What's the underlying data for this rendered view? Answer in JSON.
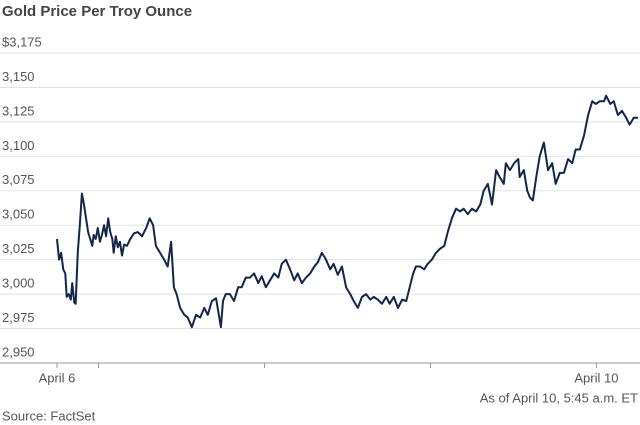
{
  "chart_data": {
    "type": "line",
    "title": "Gold Price Per Troy Ounce",
    "note": "As of April 10, 5:45 a.m. ET",
    "source": "Source: FactSet",
    "color": "#14254a",
    "grid": true,
    "xlim": [
      0,
      84.3
    ],
    "xticks": [
      {
        "value": 0,
        "label": "April 6"
      },
      {
        "value": 6,
        "label": null
      },
      {
        "value": 30,
        "label": null
      },
      {
        "value": 54,
        "label": null
      },
      {
        "value": 78,
        "label": "April 10"
      }
    ],
    "ylim": [
      2950,
      3175
    ],
    "yticks": [
      {
        "value": 2950,
        "label": "2,950"
      },
      {
        "value": 2975,
        "label": "2,975"
      },
      {
        "value": 3000,
        "label": "3,000"
      },
      {
        "value": 3025,
        "label": "3,025"
      },
      {
        "value": 3050,
        "label": "3,050"
      },
      {
        "value": 3075,
        "label": "3,075"
      },
      {
        "value": 3100,
        "label": "3,100"
      },
      {
        "value": 3125,
        "label": "3,125"
      },
      {
        "value": 3150,
        "label": "3,150"
      },
      {
        "value": 3175,
        "label": "$3,175"
      }
    ],
    "x": [
      0,
      0.3,
      0.6,
      0.9,
      1.2,
      1.4,
      1.7,
      2.0,
      2.2,
      2.5,
      2.7,
      3.0,
      3.3,
      3.6,
      3.9,
      4.2,
      4.5,
      4.8,
      5.1,
      5.3,
      5.6,
      5.9,
      6.2,
      6.5,
      6.8,
      7.1,
      7.4,
      7.7,
      8.0,
      8.2,
      8.5,
      8.8,
      9.1,
      9.4,
      9.7,
      10.1,
      10.6,
      11.1,
      11.7,
      12.3,
      12.9,
      13.4,
      13.9,
      14.3,
      14.9,
      15.5,
      16.0,
      16.5,
      16.9,
      17.3,
      17.8,
      18.4,
      18.9,
      19.5,
      20.1,
      20.7,
      21.3,
      21.8,
      22.4,
      23.0,
      23.4,
      23.7,
      24.0,
      24.4,
      25.0,
      25.6,
      26.2,
      26.7,
      27.3,
      27.9,
      28.5,
      29.1,
      29.6,
      30.2,
      30.8,
      31.4,
      32.0,
      32.5,
      33.1,
      33.7,
      34.3,
      34.8,
      35.4,
      36.0,
      36.6,
      37.2,
      37.7,
      38.3,
      38.9,
      39.5,
      40.0,
      40.6,
      41.2,
      41.8,
      42.4,
      42.9,
      43.5,
      44.1,
      44.7,
      45.3,
      45.8,
      46.4,
      47.0,
      47.6,
      48.1,
      48.7,
      49.3,
      49.9,
      50.5,
      51.0,
      51.5,
      51.9,
      52.5,
      53.1,
      53.6,
      54.2,
      54.8,
      55.4,
      56.0,
      56.5,
      57.1,
      57.7,
      58.3,
      58.8,
      59.4,
      60.0,
      60.6,
      61.2,
      61.7,
      62.3,
      62.9,
      63.5,
      64.0,
      64.6,
      64.9,
      65.5,
      66.1,
      66.7,
      66.9,
      67.5,
      68.0,
      68.4,
      68.8,
      69.3,
      69.8,
      70.4,
      71.0,
      71.6,
      72.1,
      72.7,
      73.3,
      73.9,
      74.5,
      75.0,
      75.6,
      76.2,
      76.8,
      77.4,
      77.9,
      78.5,
      79.1,
      79.4,
      80.0,
      80.5,
      81.1,
      81.7,
      82.3,
      82.8,
      83.4,
      84.0
    ],
    "values": [
      3040,
      3025,
      3030,
      3018,
      3015,
      2998,
      3000,
      2996,
      3008,
      2994,
      2993,
      3030,
      3050,
      3073,
      3065,
      3055,
      3045,
      3040,
      3035,
      3043,
      3040,
      3048,
      3038,
      3043,
      3050,
      3042,
      3055,
      3045,
      3040,
      3030,
      3042,
      3034,
      3038,
      3028,
      3036,
      3035,
      3040,
      3044,
      3045,
      3042,
      3048,
      3055,
      3050,
      3035,
      3030,
      3025,
      3020,
      3038,
      3005,
      3000,
      2990,
      2985,
      2983,
      2976,
      2985,
      2983,
      2990,
      2985,
      2995,
      2997,
      2985,
      2976,
      2995,
      3000,
      3000,
      2995,
      3005,
      3005,
      3012,
      3012,
      3015,
      3008,
      3013,
      3005,
      3010,
      3015,
      3012,
      3022,
      3025,
      3018,
      3010,
      3015,
      3008,
      3012,
      3015,
      3020,
      3023,
      3030,
      3025,
      3018,
      3022,
      3014,
      3020,
      3005,
      3000,
      2995,
      2990,
      2998,
      3000,
      2996,
      2998,
      2996,
      2993,
      2998,
      2993,
      2998,
      2990,
      2996,
      2995,
      3005,
      3015,
      3020,
      3020,
      3018,
      3022,
      3025,
      3030,
      3033,
      3035,
      3045,
      3055,
      3062,
      3060,
      3062,
      3058,
      3062,
      3060,
      3065,
      3075,
      3080,
      3065,
      3090,
      3085,
      3080,
      3095,
      3090,
      3095,
      3098,
      3085,
      3090,
      3075,
      3070,
      3068,
      3085,
      3100,
      3110,
      3090,
      3095,
      3080,
      3088,
      3088,
      3098,
      3095,
      3105,
      3105,
      3115,
      3130,
      3140,
      3138,
      3140,
      3140,
      3144,
      3138,
      3140,
      3130,
      3133,
      3128,
      3123,
      3128,
      3128
    ]
  }
}
